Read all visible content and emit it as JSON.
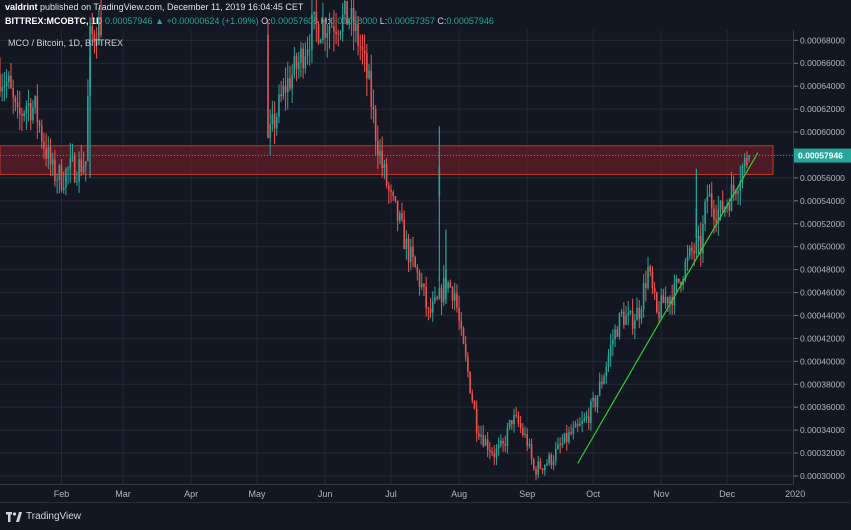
{
  "header": {
    "author": "valdrint",
    "published_text": "published on TradingView.com, December 11, 2019 16:04:45 CET",
    "symbol": "BITTREX:MCOBTC, 1D",
    "last": "0.00057946",
    "change": "+0.00000624 (+1.09%)",
    "o_label": "O:",
    "o_value": "0.00057608",
    "h_label": "H:",
    "h_value": "0.00058000",
    "l_label": "L:",
    "l_value": "0.00057357",
    "c_label": "C:",
    "c_value": "0.00057946"
  },
  "legend": {
    "label": "MCO / Bitcoin, 1D, BITTREX"
  },
  "footer": {
    "brand": "TradingView"
  },
  "colors": {
    "up": "#26a69a",
    "down": "#ef5350",
    "trendline": "#33cc33",
    "zone_fill": "#7d1f2a",
    "zone_border": "#c0392b",
    "price_tag": "#26a69a"
  },
  "chart_data": {
    "type": "candlestick",
    "title": "MCO / Bitcoin, 1D, BITTREX",
    "ylim": [
      0.000293,
      0.000689
    ],
    "y_ticks": [
      "0.00030000",
      "0.00032000",
      "0.00034000",
      "0.00036000",
      "0.00038000",
      "0.00040000",
      "0.00042000",
      "0.00044000",
      "0.00046000",
      "0.00048000",
      "0.00050000",
      "0.00052000",
      "0.00054000",
      "0.00056000",
      "0.00058000",
      "0.00060000",
      "0.00062000",
      "0.00064000",
      "0.00066000",
      "0.00068000"
    ],
    "x_ticks": [
      {
        "label": "Feb",
        "date": "2019-02-01"
      },
      {
        "label": "Mar",
        "date": "2019-03-01"
      },
      {
        "label": "Apr",
        "date": "2019-04-01"
      },
      {
        "label": "May",
        "date": "2019-05-01"
      },
      {
        "label": "Jun",
        "date": "2019-06-01"
      },
      {
        "label": "Jul",
        "date": "2019-07-01"
      },
      {
        "label": "Aug",
        "date": "2019-08-01"
      },
      {
        "label": "Sep",
        "date": "2019-09-01"
      },
      {
        "label": "Oct",
        "date": "2019-10-01"
      },
      {
        "label": "Nov",
        "date": "2019-11-01"
      },
      {
        "label": "Dec",
        "date": "2019-12-01"
      },
      {
        "label": "2020",
        "date": "2020-01-01"
      }
    ],
    "x_range": [
      "2019-01-04",
      "2019-12-31"
    ],
    "current_price": {
      "value": 0.00057946,
      "label": "0.00057946"
    },
    "resistance_zone": {
      "low": 0.000563,
      "high": 0.000588,
      "from": "2019-01-04",
      "to": "2019-12-31"
    },
    "trendline": {
      "start": {
        "date": "2019-09-24",
        "value": 0.000311
      },
      "end": {
        "date": "2019-12-15",
        "value": 0.000582
      }
    },
    "price_path": [
      {
        "date": "2019-01-04",
        "value": 0.00065
      },
      {
        "date": "2019-01-08",
        "value": 0.00064
      },
      {
        "date": "2019-01-12",
        "value": 0.00061
      },
      {
        "date": "2019-01-16",
        "value": 0.000625
      },
      {
        "date": "2019-01-20",
        "value": 0.00062
      },
      {
        "date": "2019-01-24",
        "value": 0.00059
      },
      {
        "date": "2019-01-28",
        "value": 0.000565
      },
      {
        "date": "2019-02-01",
        "value": 0.00056
      },
      {
        "date": "2019-02-05",
        "value": 0.000568
      },
      {
        "date": "2019-02-09",
        "value": 0.00057
      },
      {
        "date": "2019-02-12",
        "value": 0.000575
      },
      {
        "date": "2019-02-14",
        "value": 0.00068
      },
      {
        "date": "2019-02-20",
        "value": 0.0007
      },
      {
        "date": "2019-05-06",
        "value": 0.00059
      },
      {
        "date": "2019-05-09",
        "value": 0.00061
      },
      {
        "date": "2019-05-14",
        "value": 0.00064
      },
      {
        "date": "2019-05-20",
        "value": 0.00066
      },
      {
        "date": "2019-05-26",
        "value": 0.00069
      },
      {
        "date": "2019-06-12",
        "value": 0.0007
      },
      {
        "date": "2019-06-17",
        "value": 0.000675
      },
      {
        "date": "2019-06-21",
        "value": 0.00064
      },
      {
        "date": "2019-06-24",
        "value": 0.0006
      },
      {
        "date": "2019-06-27",
        "value": 0.00057
      },
      {
        "date": "2019-07-01",
        "value": 0.00054
      },
      {
        "date": "2019-07-05",
        "value": 0.00052
      },
      {
        "date": "2019-07-08",
        "value": 0.0005
      },
      {
        "date": "2019-07-11",
        "value": 0.000485
      },
      {
        "date": "2019-07-15",
        "value": 0.000465
      },
      {
        "date": "2019-07-18",
        "value": 0.00044
      },
      {
        "date": "2019-07-22",
        "value": 0.00045
      },
      {
        "date": "2019-07-26",
        "value": 0.00047
      },
      {
        "date": "2019-07-30",
        "value": 0.00046
      },
      {
        "date": "2019-08-02",
        "value": 0.00042
      },
      {
        "date": "2019-08-05",
        "value": 0.00039
      },
      {
        "date": "2019-08-09",
        "value": 0.000345
      },
      {
        "date": "2019-08-13",
        "value": 0.00033
      },
      {
        "date": "2019-08-17",
        "value": 0.00032
      },
      {
        "date": "2019-08-21",
        "value": 0.000325
      },
      {
        "date": "2019-08-25",
        "value": 0.00035
      },
      {
        "date": "2019-08-28",
        "value": 0.000345
      },
      {
        "date": "2019-09-01",
        "value": 0.00033
      },
      {
        "date": "2019-09-04",
        "value": 0.000305
      },
      {
        "date": "2019-09-08",
        "value": 0.00031
      },
      {
        "date": "2019-09-12",
        "value": 0.000315
      },
      {
        "date": "2019-09-16",
        "value": 0.000325
      },
      {
        "date": "2019-09-20",
        "value": 0.000335
      },
      {
        "date": "2019-09-24",
        "value": 0.00034
      },
      {
        "date": "2019-09-28",
        "value": 0.00035
      },
      {
        "date": "2019-10-02",
        "value": 0.000365
      },
      {
        "date": "2019-10-06",
        "value": 0.00039
      },
      {
        "date": "2019-10-10",
        "value": 0.00042
      },
      {
        "date": "2019-10-14",
        "value": 0.00044
      },
      {
        "date": "2019-10-18",
        "value": 0.000435
      },
      {
        "date": "2019-10-22",
        "value": 0.000445
      },
      {
        "date": "2019-10-26",
        "value": 0.00048
      },
      {
        "date": "2019-10-30",
        "value": 0.00044
      },
      {
        "date": "2019-11-03",
        "value": 0.000455
      },
      {
        "date": "2019-11-07",
        "value": 0.00046
      },
      {
        "date": "2019-11-11",
        "value": 0.00048
      },
      {
        "date": "2019-11-15",
        "value": 0.000495
      },
      {
        "date": "2019-11-19",
        "value": 0.0005
      },
      {
        "date": "2019-11-22",
        "value": 0.000545
      },
      {
        "date": "2019-11-25",
        "value": 0.000535
      },
      {
        "date": "2019-11-28",
        "value": 0.00053
      },
      {
        "date": "2019-12-01",
        "value": 0.00054
      },
      {
        "date": "2019-12-04",
        "value": 0.00055
      },
      {
        "date": "2019-12-07",
        "value": 0.000565
      },
      {
        "date": "2019-12-10",
        "value": 0.000576
      },
      {
        "date": "2019-12-11",
        "value": 0.00057946
      }
    ],
    "spikes": [
      {
        "date": "2019-02-14",
        "high": 0.0007,
        "low": 0.00056
      },
      {
        "date": "2019-07-23",
        "high": 0.000605,
        "low": 0.00047
      },
      {
        "date": "2019-07-26",
        "high": 0.000515,
        "low": 0.00045
      },
      {
        "date": "2019-11-17",
        "high": 0.000568,
        "low": 0.00051
      }
    ]
  }
}
